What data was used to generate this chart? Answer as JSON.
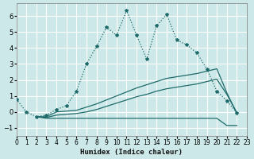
{
  "xlabel": "Humidex (Indice chaleur)",
  "bg_color": "#cde8e8",
  "grid_color": "#ffffff",
  "line_color": "#1f6b6b",
  "xlim": [
    0,
    23
  ],
  "ylim": [
    -1.5,
    6.8
  ],
  "yticks": [
    -1,
    0,
    1,
    2,
    3,
    4,
    5,
    6
  ],
  "xticks": [
    0,
    1,
    2,
    3,
    4,
    5,
    6,
    7,
    8,
    9,
    10,
    11,
    12,
    13,
    14,
    15,
    16,
    17,
    18,
    19,
    20,
    21,
    22,
    23
  ],
  "line1_x": [
    0,
    1,
    2,
    3,
    4,
    5,
    6,
    7,
    8,
    9,
    10,
    11,
    12,
    13,
    14,
    15,
    16,
    17,
    18,
    19,
    20,
    21,
    22
  ],
  "line1_y": [
    0.8,
    0.0,
    -0.3,
    -0.2,
    0.15,
    0.4,
    1.3,
    3.0,
    4.1,
    5.3,
    4.8,
    6.35,
    4.8,
    3.3,
    5.4,
    6.1,
    4.5,
    4.2,
    3.7,
    2.7,
    1.3,
    0.7,
    -0.05
  ],
  "line2_x": [
    2,
    3,
    4,
    5,
    6,
    7,
    8,
    9,
    10,
    11,
    12,
    13,
    14,
    15,
    16,
    17,
    18,
    19,
    20,
    21,
    22
  ],
  "line2_y": [
    -0.3,
    -0.3,
    0.0,
    0.05,
    0.1,
    0.3,
    0.5,
    0.75,
    1.0,
    1.25,
    1.5,
    1.7,
    1.9,
    2.1,
    2.2,
    2.3,
    2.4,
    2.55,
    2.7,
    1.2,
    -0.1
  ],
  "line3_x": [
    2,
    3,
    4,
    5,
    6,
    7,
    8,
    9,
    10,
    11,
    12,
    13,
    14,
    15,
    16,
    17,
    18,
    19,
    20,
    21,
    22
  ],
  "line3_y": [
    -0.3,
    -0.35,
    -0.2,
    -0.15,
    -0.1,
    0.0,
    0.15,
    0.35,
    0.55,
    0.75,
    0.95,
    1.1,
    1.3,
    1.45,
    1.55,
    1.65,
    1.75,
    1.9,
    2.05,
    1.1,
    -0.05
  ],
  "line4_x": [
    2,
    3,
    4,
    5,
    6,
    7,
    8,
    9,
    10,
    11,
    12,
    13,
    14,
    15,
    16,
    17,
    18,
    19,
    20,
    21,
    22
  ],
  "line4_y": [
    -0.3,
    -0.4,
    -0.4,
    -0.4,
    -0.4,
    -0.4,
    -0.4,
    -0.4,
    -0.4,
    -0.4,
    -0.4,
    -0.4,
    -0.4,
    -0.4,
    -0.4,
    -0.4,
    -0.4,
    -0.4,
    -0.4,
    -0.85,
    -0.85
  ]
}
